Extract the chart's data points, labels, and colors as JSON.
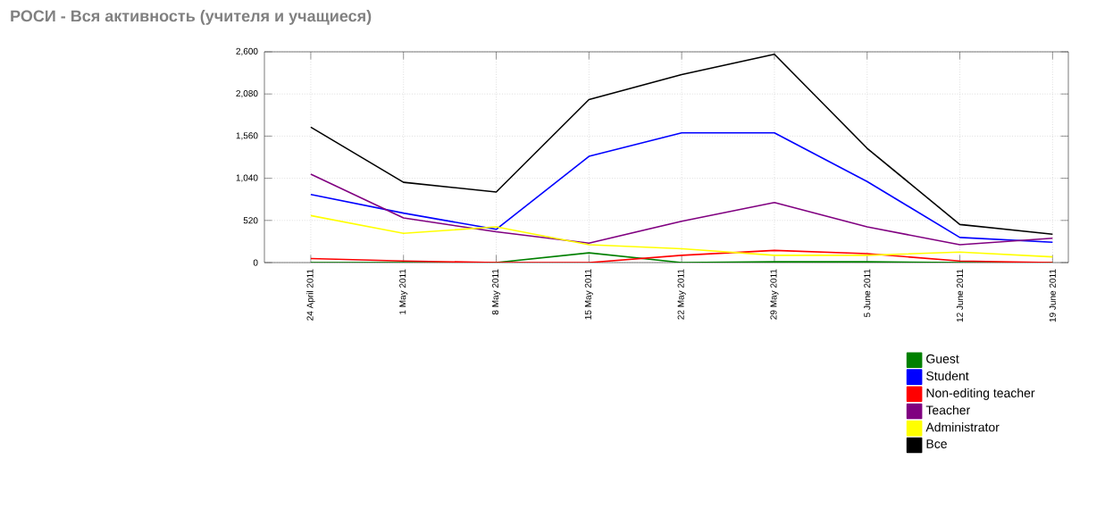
{
  "chart_data": {
    "type": "line",
    "title": "РОСИ - Вся активность (учителя и учащиеся)",
    "categories": [
      "24 April 2011",
      "1 May 2011",
      "8 May 2011",
      "15 May 2011",
      "22 May 2011",
      "29 May 2011",
      "5 June 2011",
      "12 June 2011",
      "19 June 2011"
    ],
    "series": [
      {
        "name": "Guest",
        "color": "#008000",
        "values": [
          0,
          0,
          0,
          120,
          0,
          10,
          10,
          0,
          0
        ]
      },
      {
        "name": "Student",
        "color": "#0000ff",
        "values": [
          840,
          610,
          410,
          1310,
          1600,
          1600,
          1000,
          310,
          250
        ]
      },
      {
        "name": "Non-editing teacher",
        "color": "#ff0000",
        "values": [
          50,
          20,
          0,
          0,
          90,
          150,
          110,
          20,
          0
        ]
      },
      {
        "name": "Teacher",
        "color": "#800080",
        "values": [
          1090,
          550,
          380,
          240,
          510,
          740,
          440,
          220,
          300
        ]
      },
      {
        "name": "Administrator",
        "color": "#ffff00",
        "values": [
          580,
          360,
          440,
          220,
          170,
          90,
          90,
          130,
          70
        ]
      },
      {
        "name": "Все",
        "color": "#000000",
        "values": [
          1670,
          990,
          870,
          2010,
          2320,
          2570,
          1410,
          470,
          350
        ]
      }
    ],
    "ylim": [
      0,
      2600
    ],
    "yticks": [
      0,
      {
        "value": 520,
        "label": "520"
      },
      {
        "value": 1040,
        "label": "1,040"
      },
      {
        "value": 1560,
        "label": "1,560"
      },
      {
        "value": 2080,
        "label": "2,080"
      },
      {
        "value": 2600,
        "label": "2,600"
      }
    ],
    "grid": true,
    "legend": "bottom right"
  }
}
